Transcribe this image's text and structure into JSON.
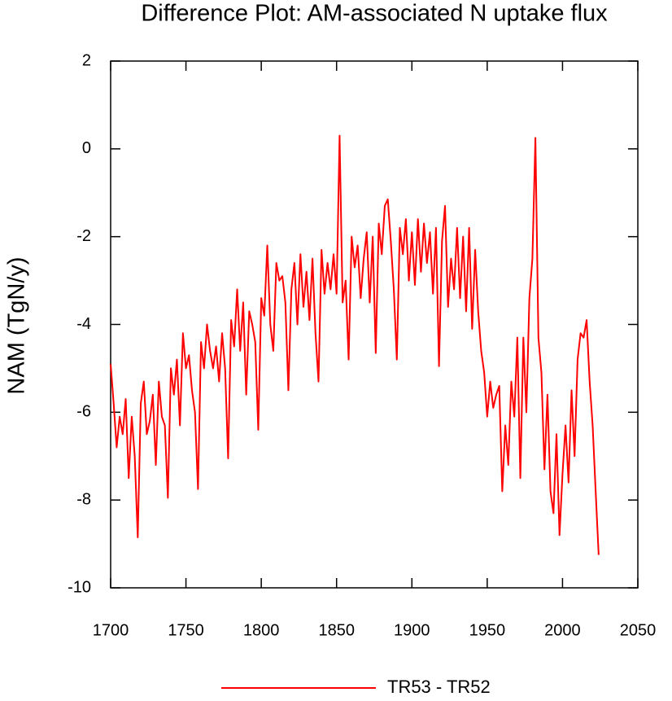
{
  "chart_data": {
    "type": "line",
    "title": "Difference Plot: AM-associated N uptake flux",
    "ylabel": "NAM  (TgN/y)",
    "x": [
      1700,
      1702,
      1704,
      1706,
      1708,
      1710,
      1712,
      1714,
      1716,
      1718,
      1720,
      1722,
      1724,
      1726,
      1728,
      1730,
      1732,
      1734,
      1736,
      1738,
      1740,
      1742,
      1744,
      1746,
      1748,
      1750,
      1752,
      1754,
      1756,
      1758,
      1760,
      1762,
      1764,
      1766,
      1768,
      1770,
      1772,
      1774,
      1776,
      1778,
      1780,
      1782,
      1784,
      1786,
      1788,
      1790,
      1792,
      1794,
      1796,
      1798,
      1800,
      1802,
      1804,
      1806,
      1808,
      1810,
      1812,
      1814,
      1816,
      1818,
      1820,
      1822,
      1824,
      1826,
      1828,
      1830,
      1832,
      1834,
      1836,
      1838,
      1840,
      1842,
      1844,
      1846,
      1848,
      1850,
      1852,
      1854,
      1856,
      1858,
      1860,
      1862,
      1864,
      1866,
      1868,
      1870,
      1872,
      1874,
      1876,
      1878,
      1880,
      1882,
      1884,
      1886,
      1888,
      1890,
      1892,
      1894,
      1896,
      1898,
      1900,
      1902,
      1904,
      1906,
      1908,
      1910,
      1912,
      1914,
      1916,
      1918,
      1920,
      1922,
      1924,
      1926,
      1928,
      1930,
      1932,
      1934,
      1936,
      1938,
      1940,
      1942,
      1944,
      1946,
      1948,
      1950,
      1952,
      1954,
      1956,
      1958,
      1960,
      1962,
      1964,
      1966,
      1968,
      1970,
      1972,
      1974,
      1976,
      1978,
      1980,
      1982,
      1984,
      1986,
      1988,
      1990,
      1992,
      1994,
      1996,
      1998,
      2000,
      2002,
      2004,
      2006,
      2008,
      2010,
      2012,
      2014,
      2016,
      2018,
      2020,
      2022,
      2024
    ],
    "series": [
      {
        "name": "TR53 - TR52",
        "color": "#ff0000",
        "values": [
          -4.9,
          -5.8,
          -6.8,
          -6.1,
          -6.5,
          -5.7,
          -7.5,
          -6.1,
          -7.0,
          -8.85,
          -5.8,
          -5.3,
          -6.5,
          -6.2,
          -5.6,
          -7.2,
          -5.3,
          -6.1,
          -6.3,
          -7.95,
          -5.0,
          -5.6,
          -4.8,
          -6.3,
          -4.2,
          -5.0,
          -4.7,
          -5.5,
          -6.0,
          -7.75,
          -4.4,
          -5.0,
          -4.0,
          -4.6,
          -5.0,
          -4.5,
          -5.3,
          -4.2,
          -5.0,
          -7.05,
          -3.9,
          -4.5,
          -3.2,
          -4.6,
          -3.5,
          -5.6,
          -3.7,
          -4.0,
          -4.4,
          -6.4,
          -3.4,
          -3.8,
          -2.2,
          -4.0,
          -4.6,
          -2.6,
          -3.0,
          -2.9,
          -3.5,
          -5.5,
          -3.2,
          -2.6,
          -4.0,
          -2.4,
          -3.6,
          -2.8,
          -3.9,
          -2.5,
          -4.2,
          -5.3,
          -2.3,
          -3.3,
          -2.6,
          -3.2,
          -2.4,
          -3.3,
          0.3,
          -3.5,
          -3.0,
          -4.8,
          -2.0,
          -2.7,
          -2.2,
          -3.4,
          -2.5,
          -1.9,
          -3.5,
          -2.0,
          -4.65,
          -1.7,
          -2.4,
          -1.3,
          -1.15,
          -2.1,
          -3.2,
          -4.8,
          -1.8,
          -2.4,
          -1.6,
          -3.0,
          -1.9,
          -3.1,
          -1.6,
          -2.8,
          -1.7,
          -2.6,
          -1.9,
          -3.3,
          -1.8,
          -4.95,
          -2.1,
          -1.3,
          -3.6,
          -2.5,
          -3.2,
          -1.8,
          -3.4,
          -2.0,
          -3.7,
          -1.8,
          -4.1,
          -2.3,
          -3.7,
          -4.6,
          -5.1,
          -6.1,
          -5.3,
          -5.9,
          -5.6,
          -5.4,
          -7.8,
          -6.3,
          -7.2,
          -5.3,
          -6.1,
          -4.3,
          -7.5,
          -4.3,
          -6.0,
          -3.4,
          -2.5,
          0.25,
          -4.3,
          -5.1,
          -7.3,
          -5.6,
          -7.8,
          -8.3,
          -6.5,
          -8.8,
          -7.4,
          -6.3,
          -7.6,
          -5.5,
          -7.0,
          -4.8,
          -4.2,
          -4.3,
          -3.9,
          -5.3,
          -6.3,
          -7.8,
          -9.25
        ]
      }
    ],
    "xlim": [
      1700,
      2050
    ],
    "xticks": [
      1700,
      1750,
      1800,
      1850,
      1900,
      1950,
      2000,
      2050
    ],
    "ylim": [
      -10,
      2
    ],
    "yticks": [
      -10,
      -8,
      -6,
      -4,
      -2,
      0,
      2
    ],
    "legend": "bottom"
  }
}
